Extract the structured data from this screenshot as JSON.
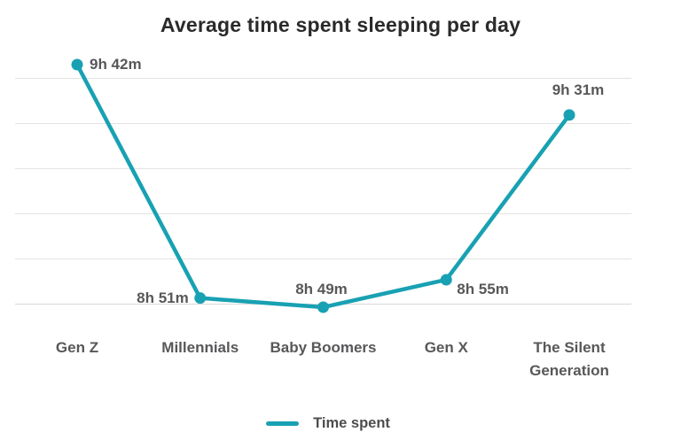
{
  "chart_data": {
    "type": "line",
    "title": "Average time spent sleeping per day",
    "categories": [
      "Gen Z",
      "Millennials",
      "Baby Boomers",
      "Gen X",
      "The Silent Generation"
    ],
    "series": [
      {
        "name": "Time spent",
        "values_minutes": [
          582,
          531,
          529,
          535,
          571
        ],
        "value_labels": [
          "9h 42m",
          "8h 51m",
          "8h 49m",
          "8h 55m",
          "9h 31m"
        ]
      }
    ],
    "xlabel": "",
    "ylabel": "",
    "y_axis_labels_visible": false,
    "grid": "horizontal",
    "legend_position": "bottom",
    "colors": {
      "line": "#18a1b3",
      "point": "#18a1b3",
      "title_text": "#2a2a2a",
      "label_text": "#58585a",
      "legend_text": "#4d4d4f",
      "gridline": "#e3e3e3",
      "background": "#ffffff"
    }
  }
}
